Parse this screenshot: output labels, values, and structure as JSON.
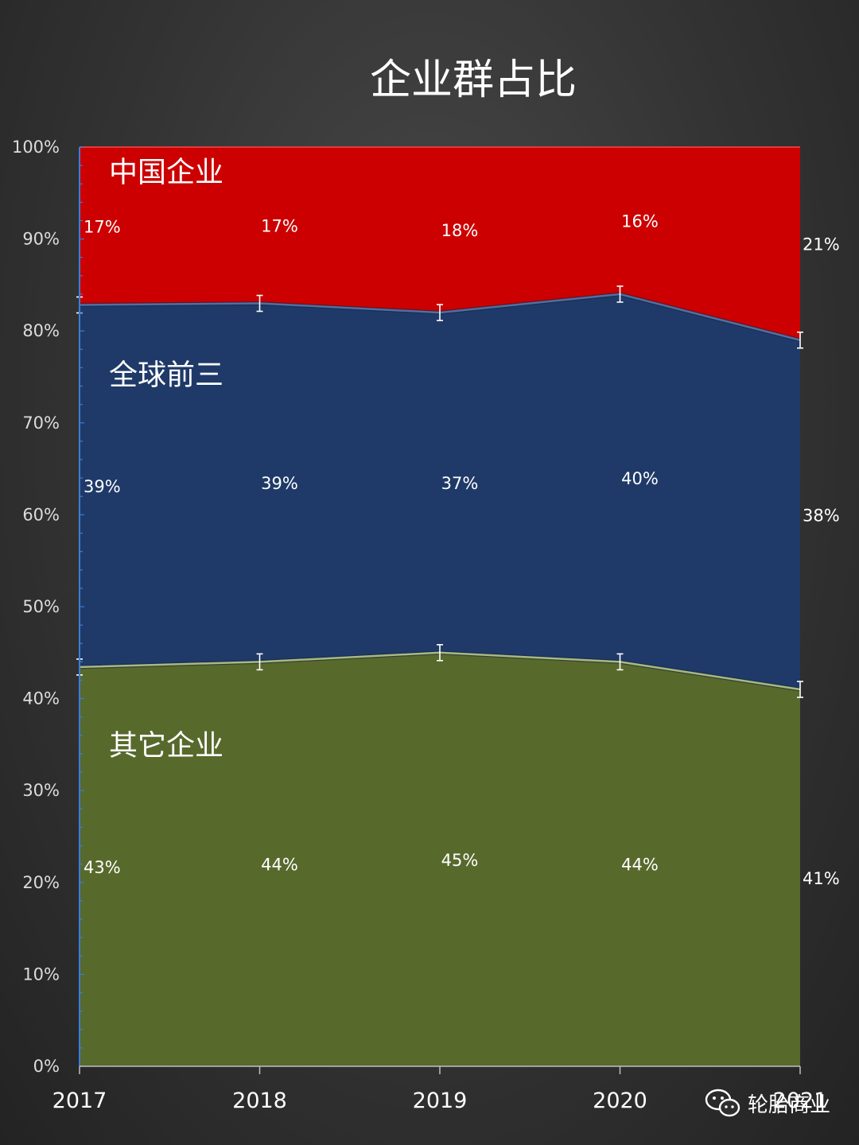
{
  "chart_data": {
    "type": "area",
    "stacked": true,
    "percent": true,
    "title": "企业群占比",
    "categories": [
      "2017",
      "2018",
      "2019",
      "2020",
      "2021"
    ],
    "ylim": [
      0,
      100
    ],
    "yticks": [
      "0%",
      "10%",
      "20%",
      "30%",
      "40%",
      "50%",
      "60%",
      "70%",
      "80%",
      "90%",
      "100%"
    ],
    "grid": false,
    "series": [
      {
        "name": "其它企业",
        "color": "#58692c",
        "values": [
          43,
          44,
          45,
          44,
          41
        ],
        "labels": [
          "43%",
          "44%",
          "45%",
          "44%",
          "41%"
        ]
      },
      {
        "name": "全球前三",
        "color": "#1f3a68",
        "values": [
          39,
          39,
          37,
          40,
          38
        ],
        "labels": [
          "39%",
          "39%",
          "37%",
          "40%",
          "38%"
        ]
      },
      {
        "name": "中国企业",
        "color": "#cc0000",
        "values": [
          17,
          17,
          18,
          16,
          21
        ],
        "labels": [
          "17%",
          "17%",
          "18%",
          "16%",
          "21%"
        ]
      }
    ]
  },
  "watermark": {
    "text": "轮胎商业",
    "icon": "wechat-icon"
  }
}
